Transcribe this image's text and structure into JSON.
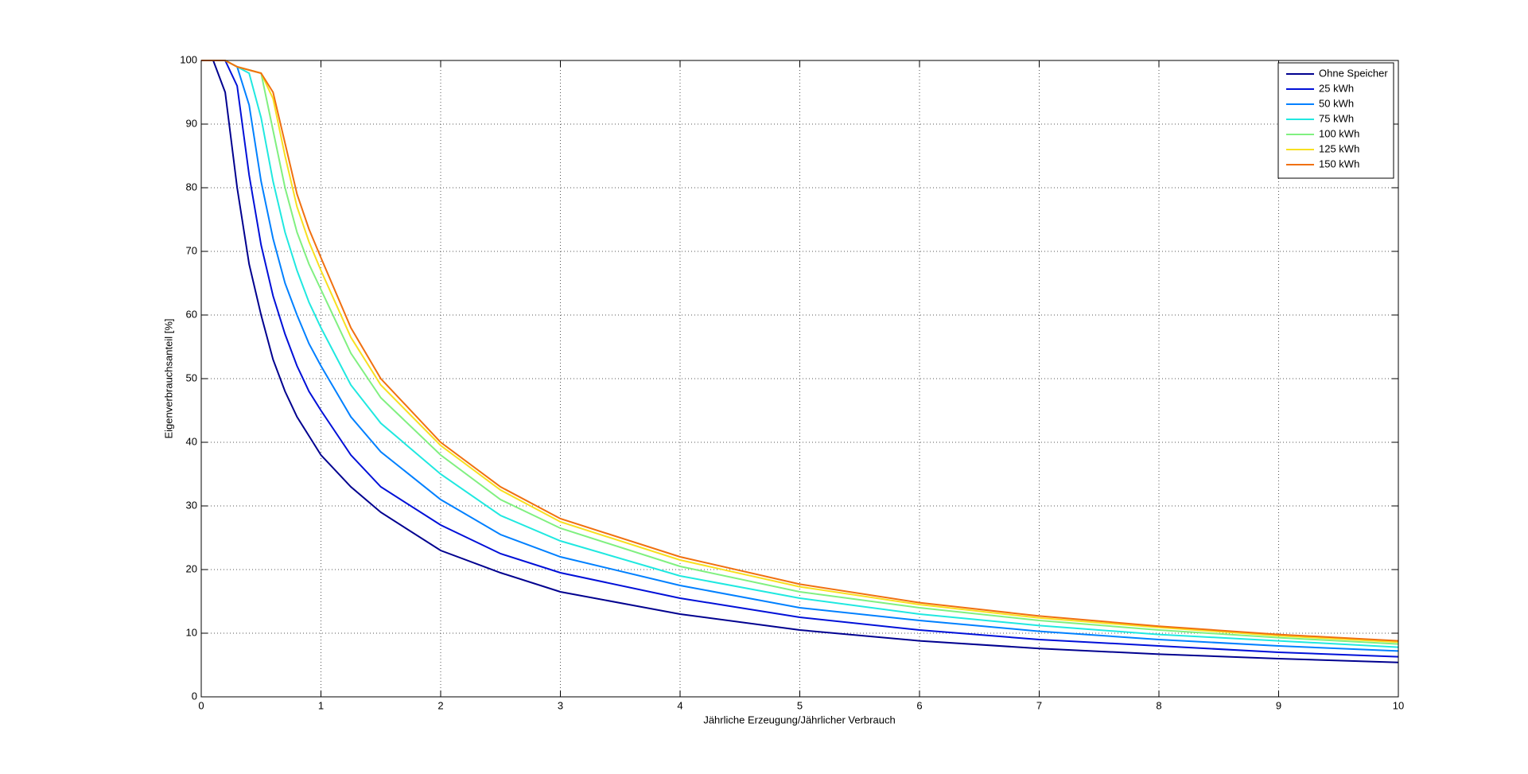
{
  "chart_data": {
    "type": "line",
    "xlabel": "Jährliche Erzeugung/Jährlicher Verbrauch",
    "ylabel": "Eigenverbrauchsanteil [%]",
    "x": [
      0,
      0.1,
      0.2,
      0.3,
      0.4,
      0.5,
      0.6,
      0.7,
      0.8,
      0.9,
      1,
      1.25,
      1.5,
      2,
      2.5,
      3,
      4,
      5,
      6,
      7,
      8,
      9,
      10
    ],
    "series": [
      {
        "name": "Ohne Speicher",
        "color": "#00008f",
        "values": [
          100,
          100,
          95,
          80,
          68,
          60,
          53,
          48,
          44,
          41,
          38,
          33,
          29,
          23,
          19.5,
          16.5,
          13,
          10.5,
          8.8,
          7.6,
          6.7,
          6,
          5.4
        ]
      },
      {
        "name": "25 kWh",
        "color": "#0010d8",
        "values": [
          100,
          100,
          100,
          96,
          82,
          71,
          63,
          57,
          52,
          48,
          45,
          38,
          33,
          27,
          22.5,
          19.5,
          15.5,
          12.5,
          10.5,
          9,
          8,
          7,
          6.3
        ]
      },
      {
        "name": "50 kWh",
        "color": "#0080ff",
        "values": [
          100,
          100,
          100,
          99,
          93,
          81,
          72,
          65,
          60,
          55.5,
          52,
          44,
          38.5,
          31,
          25.5,
          22,
          17.5,
          14,
          12,
          10.3,
          9,
          8,
          7.2
        ]
      },
      {
        "name": "75 kWh",
        "color": "#20e8e0",
        "values": [
          100,
          100,
          100,
          99,
          98,
          91,
          81,
          73,
          67,
          62,
          58,
          49,
          43,
          35,
          28.5,
          24.5,
          19,
          15.5,
          13,
          11.2,
          9.8,
          8.8,
          7.8
        ]
      },
      {
        "name": "100 kWh",
        "color": "#80f080",
        "values": [
          100,
          100,
          100,
          99,
          98.5,
          98,
          89,
          80,
          73,
          68,
          64,
          54,
          47,
          38,
          31,
          26.5,
          20.5,
          16.5,
          14,
          12,
          10.5,
          9.3,
          8.3
        ]
      },
      {
        "name": "125 kWh",
        "color": "#f8e020",
        "values": [
          100,
          100,
          100,
          99,
          98.5,
          98,
          94,
          85,
          77,
          71.5,
          67,
          56.5,
          49,
          39.5,
          32.5,
          27.5,
          21.5,
          17.3,
          14.5,
          12.4,
          10.9,
          9.6,
          8.6
        ]
      },
      {
        "name": "150 kWh",
        "color": "#f07010",
        "values": [
          100,
          100,
          100,
          99,
          98.5,
          98,
          95,
          87,
          79,
          73.5,
          69,
          58,
          50,
          40,
          33,
          28,
          22,
          17.7,
          14.8,
          12.7,
          11.1,
          9.8,
          8.8
        ]
      }
    ],
    "xlim": [
      0,
      10
    ],
    "xticks": [
      0,
      1,
      2,
      3,
      4,
      5,
      6,
      7,
      8,
      9,
      10
    ],
    "ylim": [
      0,
      100
    ],
    "yticks": [
      0,
      10,
      20,
      30,
      40,
      50,
      60,
      70,
      80,
      90,
      100
    ],
    "grid": true,
    "legend": "upper right"
  }
}
